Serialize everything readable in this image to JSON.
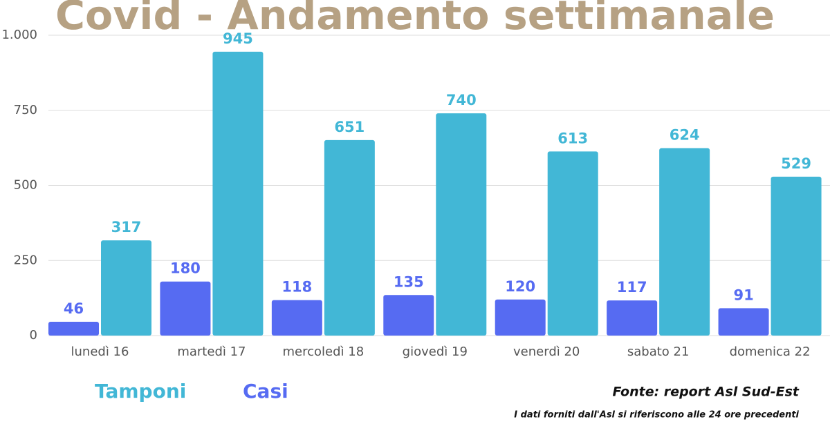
{
  "chart_data": {
    "type": "bar",
    "title": "Covid - Andamento settimanale",
    "categories": [
      "lunedì 16",
      "martedì 17",
      "mercoledì 18",
      "giovedì 19",
      "venerdì 20",
      "sabato 21",
      "domenica 22"
    ],
    "series": [
      {
        "name": "Casi",
        "color": "#566bf2",
        "values": [
          46,
          180,
          118,
          135,
          120,
          117,
          91
        ]
      },
      {
        "name": "Tamponi",
        "color": "#42b7d6",
        "values": [
          317,
          945,
          651,
          740,
          613,
          624,
          529
        ]
      }
    ],
    "ylim": [
      0,
      1000
    ],
    "yticks": [
      0,
      250,
      500,
      750,
      {
        "value": 1000,
        "label": "1.000"
      }
    ],
    "grid": true,
    "source": "Fonte: report Asl Sud-Est",
    "note": "I dati forniti dall'Asl si riferiscono alle 24 ore precedenti"
  }
}
